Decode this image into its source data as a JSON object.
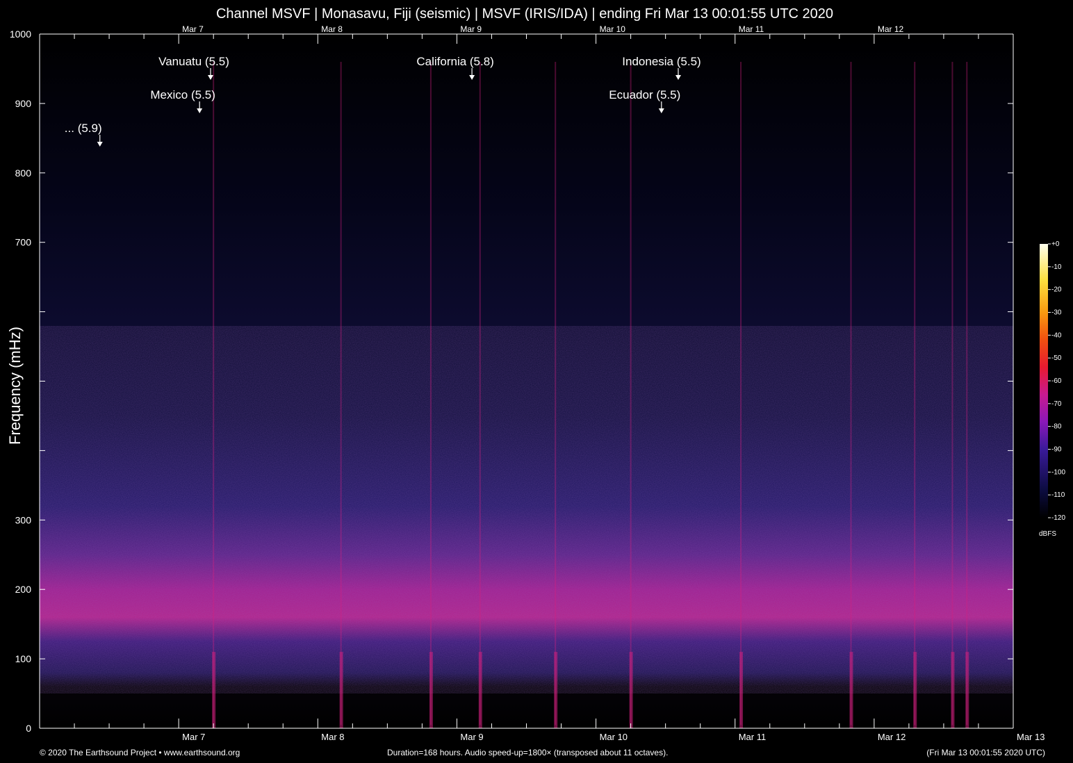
{
  "title": "Channel MSVF | Monasavu, Fiji (seismic) | MSVF (IRIS/IDA) | ending Fri Mar 13 00:01:55 UTC 2020",
  "footer": {
    "copyright": "© 2020 The Earthsound Project • www.earthsound.org",
    "duration": "Duration=168 hours. Audio speed-up=1800× (transposed about 11 octaves).",
    "timestamp": "(Fri Mar 13 00:01:55 2020 UTC)"
  },
  "colors": {
    "background": "#000000",
    "noise_band": "#b0208c",
    "low_band": "#2a1a6e",
    "accent_line": "#d42080",
    "annotation": "#ffffff"
  },
  "chart_data": {
    "type": "heatmap",
    "title": "Channel MSVF | Monasavu, Fiji (seismic) | MSVF (IRIS/IDA) | ending Fri Mar 13 00:01:55 UTC 2020",
    "ylabel": "Frequency (mHz)",
    "xlabel": "",
    "ylim": [
      0,
      1000
    ],
    "yticks": [
      0,
      100,
      200,
      300,
      700,
      800,
      900,
      1000
    ],
    "xlim_hours": [
      0,
      168
    ],
    "x_ticks": [
      {
        "label": "Mar  7",
        "hour": 24
      },
      {
        "label": "Mar  8",
        "hour": 48
      },
      {
        "label": "Mar  9",
        "hour": 72
      },
      {
        "label": "Mar 10",
        "hour": 96
      },
      {
        "label": "Mar 11",
        "hour": 120
      },
      {
        "label": "Mar 12",
        "hour": 144
      },
      {
        "label": "Mar 13",
        "hour": 168
      }
    ],
    "colorbar": {
      "unit": "dBFS",
      "ticks": [
        "+0",
        "-10",
        "-20",
        "-30",
        "-40",
        "-50",
        "-60",
        "-70",
        "-80",
        "-90",
        "-100",
        "-110",
        "-120"
      ],
      "range": [
        -120,
        0
      ]
    },
    "events": [
      {
        "label": "... (5.9)",
        "hour": 10.4,
        "level": 3
      },
      {
        "label": "Mexico (5.5)",
        "hour": 27.6,
        "level": 2
      },
      {
        "label": "Vanuatu (5.5)",
        "hour": 29.5,
        "level": 1
      },
      {
        "label": "California (5.8)",
        "hour": 74.6,
        "level": 1
      },
      {
        "label": "Ecuador (5.5)",
        "hour": 107.3,
        "level": 2
      },
      {
        "label": "Indonesia (5.5)",
        "hour": 110.2,
        "level": 1
      }
    ],
    "vertical_streaks_hours": [
      30,
      52,
      67.5,
      76,
      89,
      102,
      121,
      140,
      151,
      157.5,
      160
    ],
    "noise_band_mhz": [
      140,
      230
    ]
  }
}
